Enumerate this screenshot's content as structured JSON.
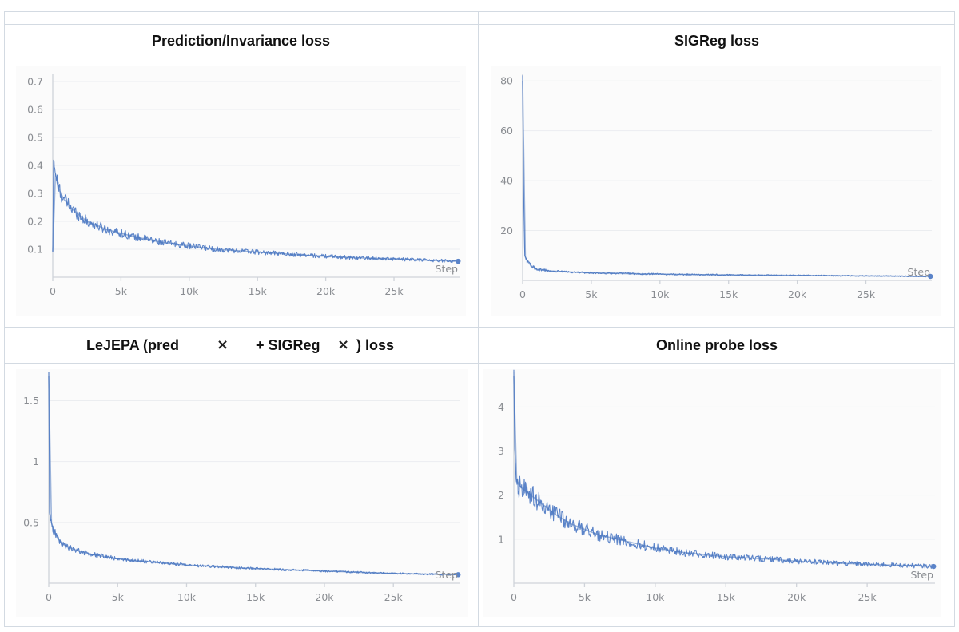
{
  "chart_data": [
    {
      "type": "line",
      "title": "Prediction/Invariance loss",
      "xlabel": "Step",
      "ylabel": "",
      "xlim": [
        0,
        29800
      ],
      "ylim": [
        0.0,
        0.72
      ],
      "yticks": [
        0.1,
        0.2,
        0.3,
        0.4,
        0.5,
        0.6,
        0.7
      ],
      "ytick_labels": [
        "0.1",
        "0.2",
        "0.3",
        "0.4",
        "0.5",
        "0.6",
        "0.7"
      ],
      "xticks": [
        0,
        5000,
        10000,
        15000,
        20000,
        25000
      ],
      "xtick_labels": [
        "0",
        "5k",
        "10k",
        "15k",
        "20k",
        "25k"
      ],
      "series": [
        {
          "name": "Prediction/Invariance loss",
          "x": [
            0,
            60,
            200,
            400,
            800,
            1500,
            2500,
            4000,
            6000,
            8000,
            10000,
            12000,
            15000,
            18000,
            20000,
            22000,
            25000,
            28000,
            29700
          ],
          "values": [
            0.09,
            0.42,
            0.37,
            0.32,
            0.28,
            0.24,
            0.2,
            0.17,
            0.145,
            0.125,
            0.112,
            0.1,
            0.09,
            0.08,
            0.075,
            0.07,
            0.065,
            0.06,
            0.057
          ],
          "noise": 0.012
        }
      ]
    },
    {
      "type": "line",
      "title": "SIGReg loss",
      "xlabel": "Step",
      "ylabel": "",
      "xlim": [
        0,
        29800
      ],
      "ylim": [
        0,
        82
      ],
      "yticks": [
        20,
        40,
        60,
        80
      ],
      "ytick_labels": [
        "20",
        "40",
        "60",
        "80"
      ],
      "xticks": [
        0,
        5000,
        10000,
        15000,
        20000,
        25000
      ],
      "xtick_labels": [
        "0",
        "5k",
        "10k",
        "15k",
        "20k",
        "25k"
      ],
      "series": [
        {
          "name": "SIGReg loss",
          "x": [
            0,
            60,
            150,
            300,
            600,
            1000,
            2000,
            4000,
            7000,
            10000,
            15000,
            20000,
            25000,
            29700
          ],
          "values": [
            80,
            40,
            10,
            8,
            6,
            4.5,
            3.8,
            3.2,
            2.8,
            2.5,
            2.2,
            2.0,
            1.8,
            1.6
          ],
          "noise": 0.4
        }
      ]
    },
    {
      "type": "line",
      "title": "LeJEPA (pred × + SIGReg × ) loss",
      "title_parts": [
        "LeJEPA (pred",
        "×",
        "+ SIGReg",
        "×",
        ") loss"
      ],
      "xlabel": "Step",
      "ylabel": "",
      "xlim": [
        0,
        29800
      ],
      "ylim": [
        0,
        1.72
      ],
      "yticks": [
        0.5,
        1.0,
        1.5
      ],
      "ytick_labels": [
        "0.5",
        "1",
        "1.5"
      ],
      "xticks": [
        0,
        5000,
        10000,
        15000,
        20000,
        25000
      ],
      "xtick_labels": [
        "0",
        "5k",
        "10k",
        "15k",
        "20k",
        "25k"
      ],
      "series": [
        {
          "name": "LeJEPA loss",
          "x": [
            0,
            60,
            150,
            300,
            600,
            1000,
            2000,
            3000,
            5000,
            8000,
            10000,
            15000,
            20000,
            25000,
            29700
          ],
          "values": [
            1.7,
            0.58,
            0.52,
            0.45,
            0.38,
            0.32,
            0.27,
            0.24,
            0.2,
            0.17,
            0.15,
            0.12,
            0.1,
            0.08,
            0.07
          ],
          "noise": 0.02
        }
      ]
    },
    {
      "type": "line",
      "title": "Online probe loss",
      "xlabel": "Step",
      "ylabel": "",
      "xlim": [
        0,
        29800
      ],
      "ylim": [
        0,
        4.75
      ],
      "yticks": [
        1,
        2,
        3,
        4
      ],
      "ytick_labels": [
        "1",
        "2",
        "3",
        "4"
      ],
      "xticks": [
        0,
        5000,
        10000,
        15000,
        20000,
        25000
      ],
      "xtick_labels": [
        "0",
        "5k",
        "10k",
        "15k",
        "20k",
        "25k"
      ],
      "series": [
        {
          "name": "Online probe loss",
          "x": [
            0,
            60,
            150,
            300,
            600,
            1000,
            2000,
            3000,
            4000,
            6000,
            8000,
            10000,
            12000,
            15000,
            18000,
            20000,
            22000,
            25000,
            28000,
            29700
          ],
          "values": [
            4.7,
            3.0,
            2.4,
            2.25,
            2.15,
            2.05,
            1.8,
            1.55,
            1.35,
            1.1,
            0.95,
            0.8,
            0.7,
            0.6,
            0.55,
            0.5,
            0.47,
            0.43,
            0.4,
            0.38
          ],
          "noise": 0.12
        }
      ]
    }
  ]
}
